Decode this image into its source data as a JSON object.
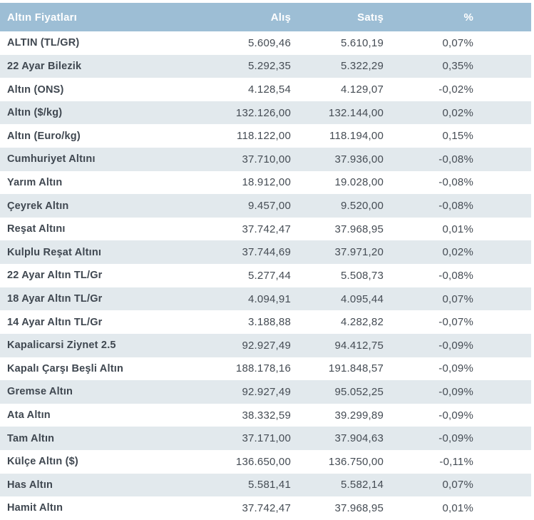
{
  "table": {
    "title": "Altın Fiyatları",
    "columns": {
      "buy": "Alış",
      "sell": "Satış",
      "change": "%"
    },
    "rows": [
      {
        "label": "ALTIN (TL/GR)",
        "buy": "5.609,46",
        "sell": "5.610,19",
        "change": "0,07%"
      },
      {
        "label": "22 Ayar Bilezik",
        "buy": "5.292,35",
        "sell": "5.322,29",
        "change": "0,35%"
      },
      {
        "label": "Altın (ONS)",
        "buy": "4.128,54",
        "sell": "4.129,07",
        "change": "-0,02%"
      },
      {
        "label": "Altın ($/kg)",
        "buy": "132.126,00",
        "sell": "132.144,00",
        "change": "0,02%"
      },
      {
        "label": "Altın (Euro/kg)",
        "buy": "118.122,00",
        "sell": "118.194,00",
        "change": "0,15%"
      },
      {
        "label": "Cumhuriyet Altını",
        "buy": "37.710,00",
        "sell": "37.936,00",
        "change": "-0,08%"
      },
      {
        "label": "Yarım Altın",
        "buy": "18.912,00",
        "sell": "19.028,00",
        "change": "-0,08%"
      },
      {
        "label": "Çeyrek Altın",
        "buy": "9.457,00",
        "sell": "9.520,00",
        "change": "-0,08%"
      },
      {
        "label": "Reşat Altını",
        "buy": "37.742,47",
        "sell": "37.968,95",
        "change": "0,01%"
      },
      {
        "label": "Kulplu Reşat Altını",
        "buy": "37.744,69",
        "sell": "37.971,20",
        "change": "0,02%"
      },
      {
        "label": "22 Ayar Altın TL/Gr",
        "buy": "5.277,44",
        "sell": "5.508,73",
        "change": "-0,08%"
      },
      {
        "label": "18 Ayar Altın TL/Gr",
        "buy": "4.094,91",
        "sell": "4.095,44",
        "change": "0,07%"
      },
      {
        "label": "14 Ayar Altın TL/Gr",
        "buy": "3.188,88",
        "sell": "4.282,82",
        "change": "-0,07%"
      },
      {
        "label": "Kapalicarsi Ziynet 2.5",
        "buy": "92.927,49",
        "sell": "94.412,75",
        "change": "-0,09%"
      },
      {
        "label": "Kapalı Çarşı Beşli Altın",
        "buy": "188.178,16",
        "sell": "191.848,57",
        "change": "-0,09%"
      },
      {
        "label": "Gremse Altın",
        "buy": "92.927,49",
        "sell": "95.052,25",
        "change": "-0,09%"
      },
      {
        "label": "Ata Altın",
        "buy": "38.332,59",
        "sell": "39.299,89",
        "change": "-0,09%"
      },
      {
        "label": "Tam Altın",
        "buy": "37.171,00",
        "sell": "37.904,63",
        "change": "-0,09%"
      },
      {
        "label": "Külçe Altın ($)",
        "buy": "136.650,00",
        "sell": "136.750,00",
        "change": "-0,11%"
      },
      {
        "label": "Has Altın",
        "buy": "5.581,41",
        "sell": "5.582,14",
        "change": "0,07%"
      },
      {
        "label": "Hamit Altın",
        "buy": "37.742,47",
        "sell": "37.968,95",
        "change": "0,01%"
      }
    ]
  },
  "colors": {
    "header_bg": "#9dbed5",
    "stripe_bg": "#e2e9ed",
    "label_text": "#3f4750",
    "value_text": "#454c54",
    "header_text": "#ffffff"
  }
}
